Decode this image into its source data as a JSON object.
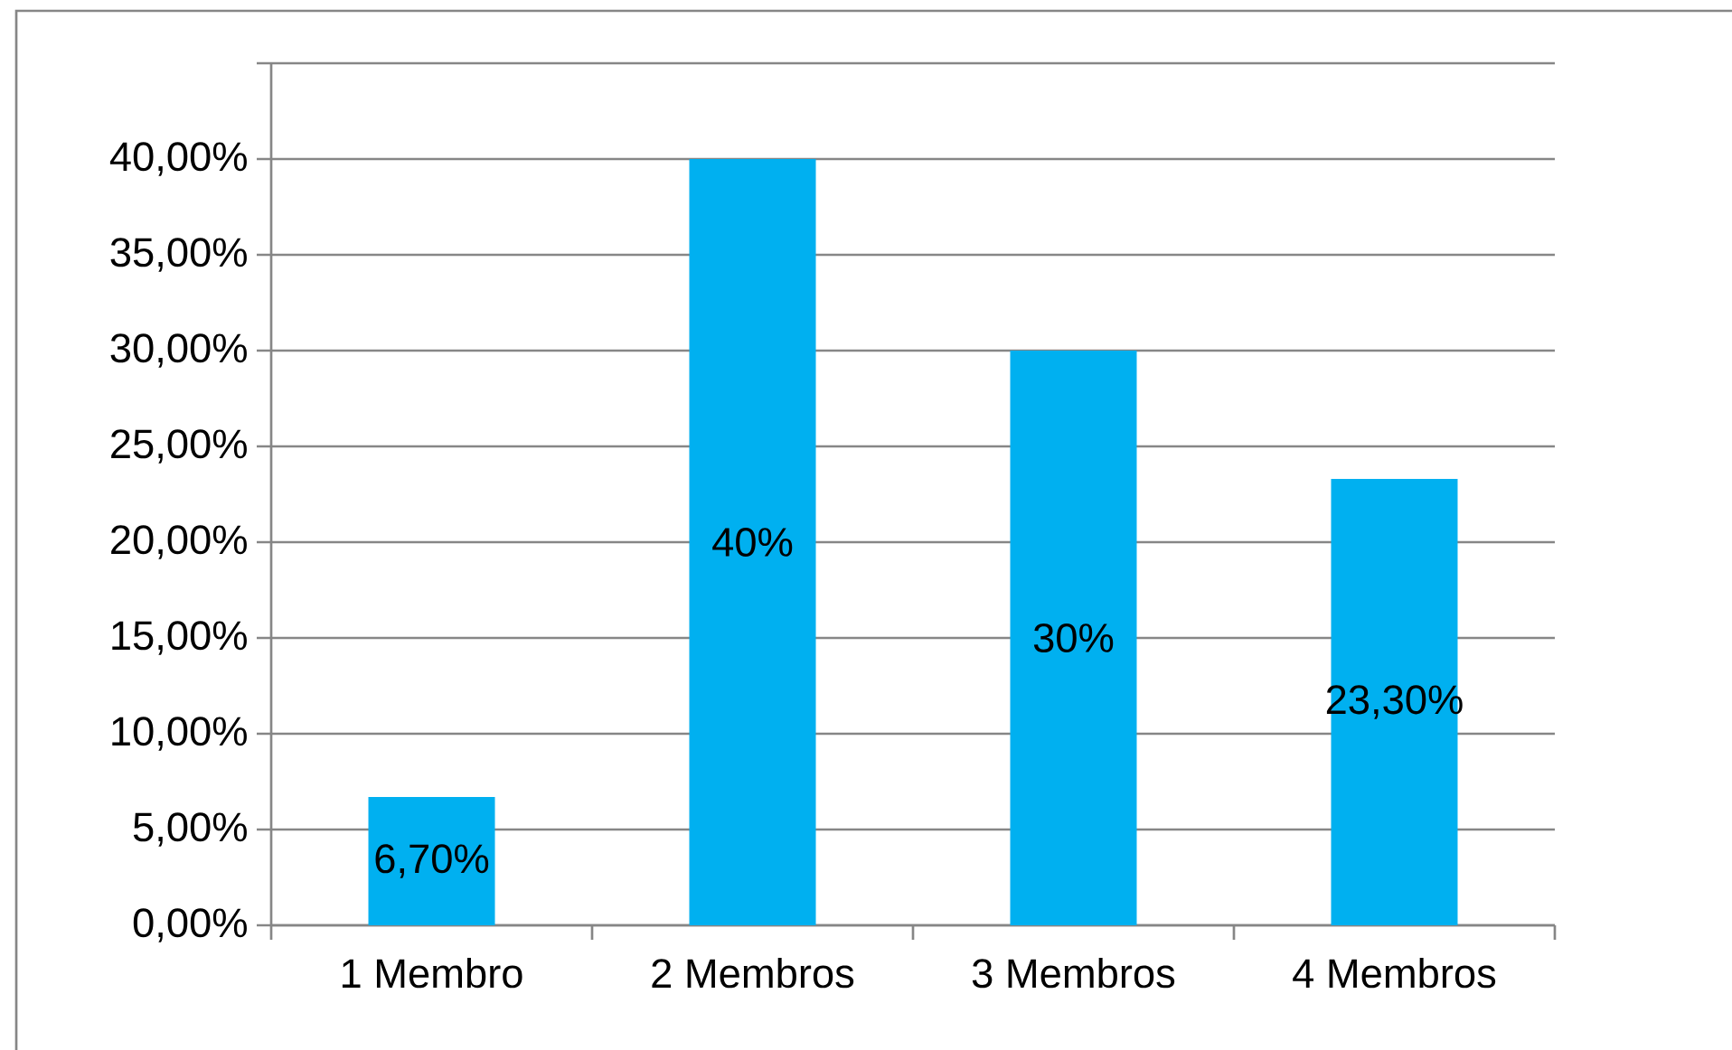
{
  "chart_data": {
    "type": "bar",
    "categories": [
      "1 Membro",
      "2 Membros",
      "3 Membros",
      "4 Membros"
    ],
    "values": [
      6.7,
      40,
      30,
      23.3
    ],
    "value_labels": [
      "6,70%",
      "40%",
      "30%",
      "23,30%"
    ],
    "color": "#00b0f0",
    "ylim": [
      0,
      45
    ],
    "yticks": [
      {
        "value": 0,
        "label": "0,00%"
      },
      {
        "value": 5,
        "label": "5,00%"
      },
      {
        "value": 10,
        "label": "10,00%"
      },
      {
        "value": 15,
        "label": "15,00%"
      },
      {
        "value": 20,
        "label": "20,00%"
      },
      {
        "value": 25,
        "label": "25,00%"
      },
      {
        "value": 30,
        "label": "30,00%"
      },
      {
        "value": 35,
        "label": "35,00%"
      },
      {
        "value": 40,
        "label": "40,00%"
      },
      {
        "value": 45,
        "label": null
      }
    ],
    "grid": "y"
  }
}
